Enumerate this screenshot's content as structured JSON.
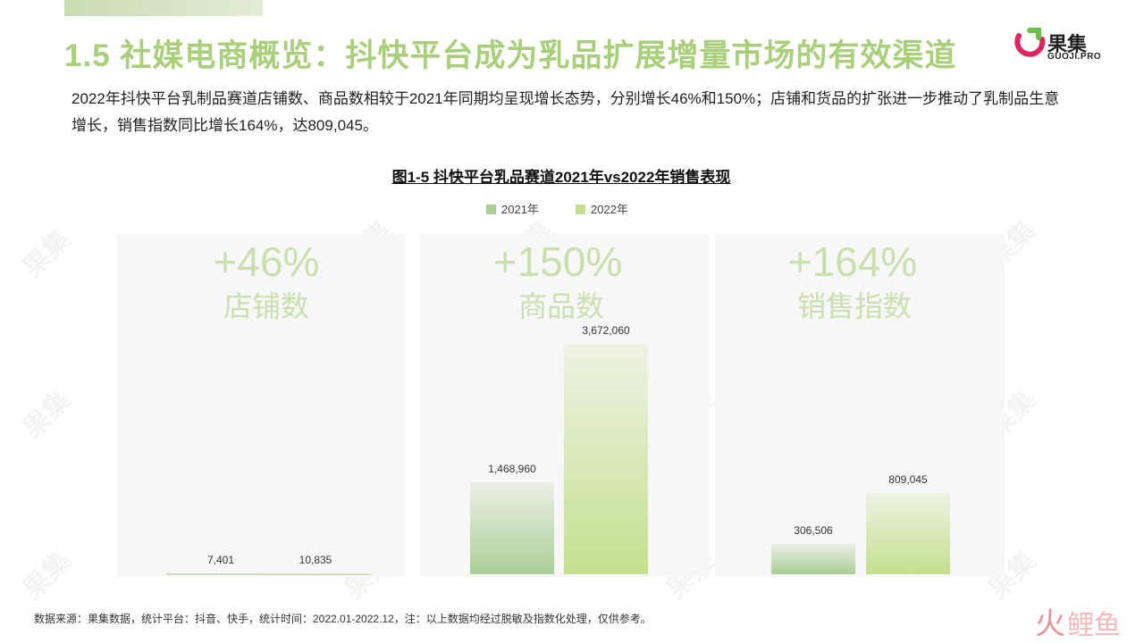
{
  "header": {
    "title": "1.5 社媒电商概览：抖快平台成为乳品扩展增量市场的有效渠道",
    "logo_text": "果集",
    "logo_sub": "GUOJI.PRO"
  },
  "intro": "2022年抖快平台乳制品赛道店铺数、商品数相较于2021年同期均呈现增长态势，分别增长46%和150%；店铺和货品的扩张进一步推动了乳制品生意增长，销售指数同比增长164%，达809,045。",
  "chart_data": {
    "type": "bar",
    "title": "图1-5 抖快平台乳品赛道2021年vs2022年销售表现",
    "legend": [
      "2021年",
      "2022年"
    ],
    "legend_position": "top-center",
    "categories": [
      "店铺数",
      "商品数",
      "销售指数"
    ],
    "growth": [
      "+46%",
      "+150%",
      "+164%"
    ],
    "series": [
      {
        "name": "2021年",
        "values": [
          7401,
          1468960,
          306506
        ],
        "labels": [
          "7,401",
          "1,468,960",
          "306,506"
        ]
      },
      {
        "name": "2022年",
        "values": [
          10835,
          3672060,
          809045
        ],
        "labels": [
          "10,835",
          "3,672,060",
          "809,045"
        ]
      }
    ],
    "ymax": [
      3000000,
      3672060,
      2300000
    ],
    "xlabel": "",
    "ylabel": "",
    "grid": false,
    "colors": {
      "2021年": "#a9cf96",
      "2022年": "#c3e08e"
    }
  },
  "footer": {
    "source": "数据来源：果集数据，统计平台：抖音、快手，统计时间：2022.01-2022.12，注：以上数据均经过脱敏及指数化处理，仅供参考。"
  },
  "watermark": {
    "text": "果集",
    "sub": "GUOJI.PRO"
  }
}
